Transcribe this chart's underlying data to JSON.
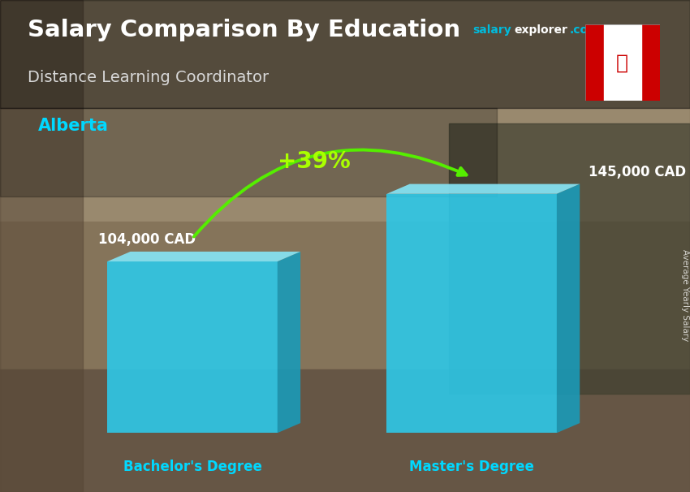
{
  "title": "Salary Comparison By Education",
  "subtitle": "Distance Learning Coordinator",
  "location": "Alberta",
  "categories": [
    "Bachelor's Degree",
    "Master's Degree"
  ],
  "values": [
    104000,
    145000
  ],
  "value_labels": [
    "104,000 CAD",
    "145,000 CAD"
  ],
  "pct_change": "+39%",
  "bar_front_color": "#2ec8e8",
  "bar_top_color": "#85e0f0",
  "bar_side_color": "#1a9ab8",
  "title_color": "#ffffff",
  "subtitle_color": "#d8d8d8",
  "location_color": "#00d8ff",
  "xlabel_color": "#00d8ff",
  "value_label_color": "#ffffff",
  "pct_color": "#aaff00",
  "arrow_color": "#55ee00",
  "brand_salary_color": "#00bbdd",
  "brand_explorer_color": "#ffffff",
  "brand_com_color": "#00bbdd",
  "ylabel_text": "Average Yearly Salary",
  "bg_top_color": "#a09070",
  "bg_bottom_color": "#706050",
  "figsize": [
    8.5,
    6.06
  ],
  "dpi": 100
}
